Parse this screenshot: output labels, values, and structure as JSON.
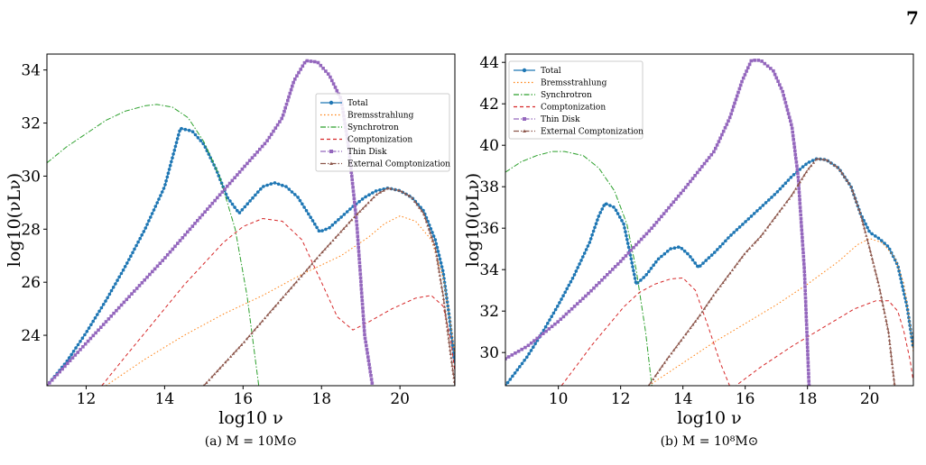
{
  "page_number": "7",
  "colors": {
    "total": "#1f77b4",
    "brems": "#ff7f0e",
    "sync": "#2ca02c",
    "compt": "#d62728",
    "disk": "#9467bd",
    "ext": "#8c564b",
    "overlay": "#56677a"
  },
  "chart_data": [
    {
      "type": "line",
      "caption": "(a) M = 10M⊙",
      "xlabel": "log10 ν",
      "ylabel": "log10(νLν)",
      "xlim": [
        11,
        21.4
      ],
      "ylim": [
        22.1,
        34.6
      ],
      "xticks": [
        12,
        14,
        16,
        18,
        20
      ],
      "yticks": [
        24,
        26,
        28,
        30,
        32,
        34
      ],
      "legend_position": "upper right",
      "series": [
        {
          "name": "Total",
          "key": "total",
          "style": "solid",
          "marker": "circle",
          "points": [
            [
              11,
              22.1
            ],
            [
              11.5,
              23.0
            ],
            [
              12,
              24.1
            ],
            [
              12.5,
              25.3
            ],
            [
              13,
              26.6
            ],
            [
              13.5,
              28.0
            ],
            [
              14,
              29.6
            ],
            [
              14.4,
              31.8
            ],
            [
              14.7,
              31.7
            ],
            [
              15,
              31.2
            ],
            [
              15.3,
              30.3
            ],
            [
              15.6,
              29.2
            ],
            [
              15.9,
              28.6
            ],
            [
              16.2,
              29.1
            ],
            [
              16.5,
              29.6
            ],
            [
              16.8,
              29.75
            ],
            [
              17.1,
              29.6
            ],
            [
              17.4,
              29.2
            ],
            [
              17.7,
              28.5
            ],
            [
              17.95,
              27.9
            ],
            [
              18.2,
              28.05
            ],
            [
              18.5,
              28.45
            ],
            [
              18.8,
              28.85
            ],
            [
              19.1,
              29.2
            ],
            [
              19.4,
              29.45
            ],
            [
              19.7,
              29.55
            ],
            [
              20,
              29.45
            ],
            [
              20.3,
              29.2
            ],
            [
              20.6,
              28.7
            ],
            [
              20.9,
              27.6
            ],
            [
              21.1,
              26.4
            ],
            [
              21.25,
              24.8
            ],
            [
              21.4,
              22.9
            ]
          ]
        },
        {
          "name": "Bremsstrahlung",
          "key": "brems",
          "style": "dotted",
          "marker": "none",
          "points": [
            [
              12.5,
              22.1
            ],
            [
              13.5,
              23.1
            ],
            [
              14.5,
              24.0
            ],
            [
              15.5,
              24.8
            ],
            [
              16.5,
              25.5
            ],
            [
              17.5,
              26.3
            ],
            [
              18.5,
              27.0
            ],
            [
              19.2,
              27.7
            ],
            [
              19.6,
              28.2
            ],
            [
              20,
              28.5
            ],
            [
              20.4,
              28.3
            ],
            [
              20.8,
              27.6
            ],
            [
              21.1,
              26.2
            ],
            [
              21.3,
              24.4
            ],
            [
              21.4,
              23.2
            ]
          ]
        },
        {
          "name": "Synchrotron",
          "key": "sync",
          "style": "dashdot",
          "marker": "none",
          "points": [
            [
              11,
              30.5
            ],
            [
              11.5,
              31.1
            ],
            [
              12,
              31.6
            ],
            [
              12.5,
              32.1
            ],
            [
              13,
              32.45
            ],
            [
              13.5,
              32.65
            ],
            [
              13.8,
              32.7
            ],
            [
              14.2,
              32.6
            ],
            [
              14.6,
              32.2
            ],
            [
              15,
              31.3
            ],
            [
              15.4,
              30.0
            ],
            [
              15.8,
              28.0
            ],
            [
              16.1,
              25.5
            ],
            [
              16.4,
              22.1
            ]
          ]
        },
        {
          "name": "Comptonization",
          "key": "compt",
          "style": "dashed",
          "marker": "none",
          "points": [
            [
              12.4,
              22.1
            ],
            [
              13,
              23.2
            ],
            [
              13.5,
              24.1
            ],
            [
              14,
              25.0
            ],
            [
              14.5,
              25.9
            ],
            [
              15,
              26.7
            ],
            [
              15.5,
              27.5
            ],
            [
              16,
              28.1
            ],
            [
              16.5,
              28.4
            ],
            [
              17,
              28.3
            ],
            [
              17.5,
              27.6
            ],
            [
              18,
              26.0
            ],
            [
              18.4,
              24.7
            ],
            [
              18.8,
              24.2
            ],
            [
              19.2,
              24.5
            ],
            [
              19.8,
              25.0
            ],
            [
              20.4,
              25.4
            ],
            [
              20.8,
              25.5
            ],
            [
              21.1,
              25.1
            ],
            [
              21.3,
              23.8
            ],
            [
              21.4,
              22.6
            ]
          ]
        },
        {
          "name": "Thin Disk",
          "key": "disk",
          "style": "dashdot",
          "marker": "square",
          "points": [
            [
              11,
              22.1
            ],
            [
              12,
              23.7
            ],
            [
              13,
              25.3
            ],
            [
              14,
              26.9
            ],
            [
              15,
              28.6
            ],
            [
              16,
              30.3
            ],
            [
              16.6,
              31.3
            ],
            [
              17,
              32.2
            ],
            [
              17.3,
              33.6
            ],
            [
              17.6,
              34.35
            ],
            [
              17.9,
              34.3
            ],
            [
              18.2,
              33.8
            ],
            [
              18.5,
              32.9
            ],
            [
              18.7,
              31.0
            ],
            [
              18.9,
              28.2
            ],
            [
              19.1,
              24.0
            ],
            [
              19.3,
              22.1
            ]
          ]
        },
        {
          "name": "External Comptonization",
          "key": "ext",
          "style": "dashdot",
          "marker": "triangle",
          "points": [
            [
              15,
              22.1
            ],
            [
              16,
              23.7
            ],
            [
              17,
              25.4
            ],
            [
              18,
              27.1
            ],
            [
              18.8,
              28.4
            ],
            [
              19.4,
              29.3
            ],
            [
              19.7,
              29.55
            ],
            [
              20,
              29.45
            ],
            [
              20.3,
              29.2
            ],
            [
              20.6,
              28.6
            ],
            [
              20.9,
              27.3
            ],
            [
              21.1,
              25.5
            ],
            [
              21.3,
              23.2
            ],
            [
              21.4,
              22.1
            ]
          ]
        }
      ]
    },
    {
      "type": "line",
      "caption": "(b) M = 10⁸M⊙",
      "xlabel": "log10 ν",
      "ylabel": "log10(νLν)",
      "xlim": [
        8.3,
        21.4
      ],
      "ylim": [
        28.4,
        44.4
      ],
      "xticks": [
        10,
        12,
        14,
        16,
        18,
        20
      ],
      "yticks": [
        30,
        32,
        34,
        36,
        38,
        40,
        42,
        44
      ],
      "legend_position": "upper left",
      "series": [
        {
          "name": "Total",
          "key": "total",
          "style": "solid",
          "marker": "circle",
          "points": [
            [
              8.3,
              28.4
            ],
            [
              9,
              29.8
            ],
            [
              9.5,
              31.0
            ],
            [
              10,
              32.3
            ],
            [
              10.5,
              33.7
            ],
            [
              11,
              35.3
            ],
            [
              11.3,
              36.6
            ],
            [
              11.5,
              37.2
            ],
            [
              11.8,
              37.0
            ],
            [
              12.1,
              36.2
            ],
            [
              12.3,
              34.8
            ],
            [
              12.5,
              33.3
            ],
            [
              12.8,
              33.7
            ],
            [
              13.2,
              34.5
            ],
            [
              13.6,
              35.0
            ],
            [
              13.9,
              35.1
            ],
            [
              14.2,
              34.7
            ],
            [
              14.5,
              34.1
            ],
            [
              15,
              34.8
            ],
            [
              15.5,
              35.6
            ],
            [
              16,
              36.3
            ],
            [
              16.5,
              37.0
            ],
            [
              17,
              37.7
            ],
            [
              17.5,
              38.5
            ],
            [
              18,
              39.15
            ],
            [
              18.3,
              39.35
            ],
            [
              18.6,
              39.3
            ],
            [
              19,
              38.9
            ],
            [
              19.4,
              38.0
            ],
            [
              19.7,
              36.7
            ],
            [
              20,
              35.8
            ],
            [
              20.3,
              35.5
            ],
            [
              20.6,
              35.1
            ],
            [
              20.9,
              34.2
            ],
            [
              21.2,
              32.2
            ],
            [
              21.4,
              30.2
            ]
          ]
        },
        {
          "name": "Bremsstrahlung",
          "key": "brems",
          "style": "dotted",
          "marker": "none",
          "points": [
            [
              12.9,
              28.4
            ],
            [
              14,
              29.5
            ],
            [
              15,
              30.5
            ],
            [
              16,
              31.4
            ],
            [
              17,
              32.3
            ],
            [
              18,
              33.3
            ],
            [
              19,
              34.4
            ],
            [
              19.6,
              35.2
            ],
            [
              20,
              35.5
            ],
            [
              20.4,
              35.3
            ],
            [
              20.8,
              34.6
            ],
            [
              21.1,
              33.3
            ],
            [
              21.3,
              31.3
            ],
            [
              21.4,
              30.0
            ]
          ]
        },
        {
          "name": "Synchrotron",
          "key": "sync",
          "style": "dashdot",
          "marker": "none",
          "points": [
            [
              8.3,
              38.7
            ],
            [
              8.8,
              39.2
            ],
            [
              9.3,
              39.5
            ],
            [
              9.8,
              39.7
            ],
            [
              10.2,
              39.7
            ],
            [
              10.8,
              39.5
            ],
            [
              11.3,
              38.9
            ],
            [
              11.8,
              37.8
            ],
            [
              12.2,
              36.2
            ],
            [
              12.5,
              34.0
            ],
            [
              12.8,
              31.0
            ],
            [
              13,
              28.4
            ]
          ]
        },
        {
          "name": "Comptonization",
          "key": "compt",
          "style": "dashed",
          "marker": "none",
          "points": [
            [
              10.1,
              28.4
            ],
            [
              10.6,
              29.4
            ],
            [
              11.1,
              30.4
            ],
            [
              11.6,
              31.3
            ],
            [
              12.1,
              32.2
            ],
            [
              12.6,
              32.9
            ],
            [
              13.1,
              33.3
            ],
            [
              13.6,
              33.55
            ],
            [
              14,
              33.6
            ],
            [
              14.4,
              33.0
            ],
            [
              14.8,
              31.3
            ],
            [
              15.2,
              29.5
            ],
            [
              15.5,
              28.4
            ],
            [
              15.7,
              28.4
            ],
            [
              16.5,
              29.3
            ],
            [
              17.5,
              30.3
            ],
            [
              18.5,
              31.2
            ],
            [
              19.5,
              32.1
            ],
            [
              20.2,
              32.5
            ],
            [
              20.6,
              32.5
            ],
            [
              20.9,
              32.0
            ],
            [
              21.1,
              31.0
            ],
            [
              21.3,
              29.6
            ],
            [
              21.4,
              28.6
            ]
          ]
        },
        {
          "name": "Thin Disk",
          "key": "disk",
          "style": "dashdot",
          "marker": "square",
          "points": [
            [
              8.3,
              29.7
            ],
            [
              9,
              30.3
            ],
            [
              10,
              31.5
            ],
            [
              11,
              32.9
            ],
            [
              12,
              34.4
            ],
            [
              13,
              36.0
            ],
            [
              14,
              37.8
            ],
            [
              15,
              39.7
            ],
            [
              15.5,
              41.3
            ],
            [
              15.9,
              43.1
            ],
            [
              16.2,
              44.1
            ],
            [
              16.5,
              44.1
            ],
            [
              16.9,
              43.6
            ],
            [
              17.2,
              42.6
            ],
            [
              17.5,
              40.9
            ],
            [
              17.7,
              38.5
            ],
            [
              17.9,
              34.0
            ],
            [
              18.05,
              28.4
            ]
          ]
        },
        {
          "name": "External Comptonization",
          "key": "ext",
          "style": "dashdot",
          "marker": "triangle",
          "points": [
            [
              12.9,
              28.4
            ],
            [
              13.5,
              29.7
            ],
            [
              14,
              30.7
            ],
            [
              14.5,
              31.7
            ],
            [
              15,
              32.8
            ],
            [
              15.5,
              33.8
            ],
            [
              16,
              34.8
            ],
            [
              16.5,
              35.6
            ],
            [
              17,
              36.6
            ],
            [
              17.5,
              37.6
            ],
            [
              18,
              38.8
            ],
            [
              18.3,
              39.35
            ],
            [
              18.6,
              39.3
            ],
            [
              19,
              38.9
            ],
            [
              19.4,
              38.0
            ],
            [
              19.7,
              36.7
            ],
            [
              20,
              35.0
            ],
            [
              20.3,
              33.2
            ],
            [
              20.6,
              31.0
            ],
            [
              20.8,
              28.4
            ]
          ]
        }
      ]
    }
  ]
}
